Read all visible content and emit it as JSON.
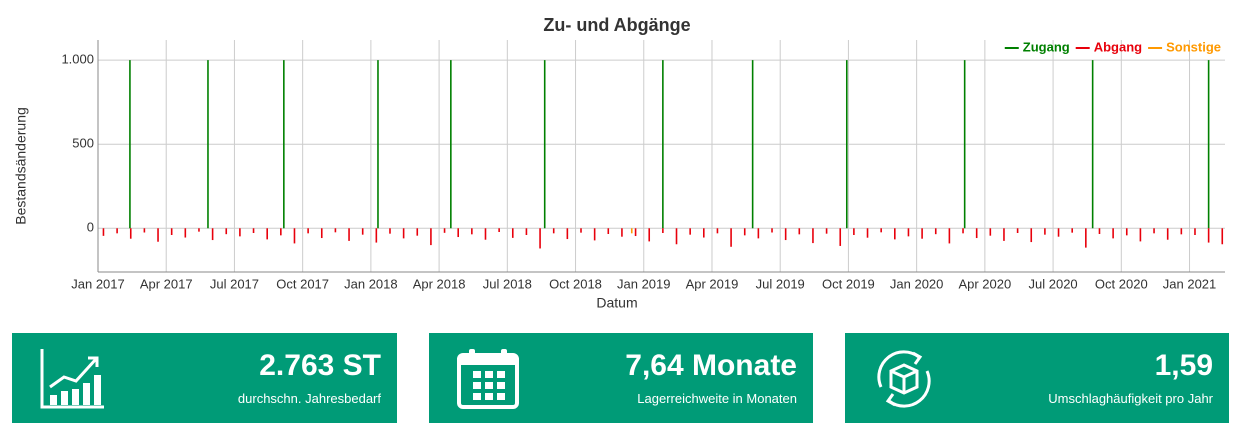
{
  "chart_data": {
    "type": "bar",
    "title": "Zu- und Abgänge",
    "x_label": "Datum",
    "y_label": "Bestandsänderung",
    "xlim": [
      2017.0,
      2021.13
    ],
    "ylim": [
      -260,
      1120
    ],
    "xticks": [
      {
        "value": 2017.0,
        "label": "Jan 2017"
      },
      {
        "value": 2017.25,
        "label": "Apr 2017"
      },
      {
        "value": 2017.5,
        "label": "Jul 2017"
      },
      {
        "value": 2017.75,
        "label": "Oct 2017"
      },
      {
        "value": 2018.0,
        "label": "Jan 2018"
      },
      {
        "value": 2018.25,
        "label": "Apr 2018"
      },
      {
        "value": 2018.5,
        "label": "Jul 2018"
      },
      {
        "value": 2018.75,
        "label": "Oct 2018"
      },
      {
        "value": 2019.0,
        "label": "Jan 2019"
      },
      {
        "value": 2019.25,
        "label": "Apr 2019"
      },
      {
        "value": 2019.5,
        "label": "Jul 2019"
      },
      {
        "value": 2019.75,
        "label": "Oct 2019"
      },
      {
        "value": 2020.0,
        "label": "Jan 2020"
      },
      {
        "value": 2020.25,
        "label": "Apr 2020"
      },
      {
        "value": 2020.5,
        "label": "Jul 2020"
      },
      {
        "value": 2020.75,
        "label": "Oct 2020"
      },
      {
        "value": 2021.0,
        "label": "Jan 2021"
      }
    ],
    "yticks": [
      0,
      500,
      {
        "value": 1000,
        "label": "1.000"
      }
    ],
    "grid": true,
    "legend": "top-right",
    "series": [
      {
        "name": "Zugang",
        "color": "#008000",
        "x": [
          2017.117,
          2017.403,
          2017.681,
          2018.026,
          2018.293,
          2018.637,
          2019.07,
          2019.399,
          2019.744,
          2020.176,
          2020.645,
          2021.07
        ],
        "values": [
          1000,
          1000,
          1000,
          1000,
          1000,
          1000,
          1000,
          1000,
          1000,
          1000,
          1000,
          1000
        ]
      },
      {
        "name": "Abgang",
        "color": "#e8000b",
        "x": [
          2017.02,
          2017.07,
          2017.12,
          2017.17,
          2017.22,
          2017.27,
          2017.32,
          2017.37,
          2017.42,
          2017.47,
          2017.52,
          2017.57,
          2017.62,
          2017.67,
          2017.72,
          2017.77,
          2017.82,
          2017.87,
          2017.92,
          2017.97,
          2018.02,
          2018.07,
          2018.12,
          2018.17,
          2018.22,
          2018.27,
          2018.32,
          2018.37,
          2018.42,
          2018.47,
          2018.52,
          2018.57,
          2018.62,
          2018.67,
          2018.72,
          2018.77,
          2018.82,
          2018.87,
          2018.92,
          2018.97,
          2019.02,
          2019.07,
          2019.12,
          2019.17,
          2019.22,
          2019.27,
          2019.32,
          2019.37,
          2019.42,
          2019.47,
          2019.52,
          2019.57,
          2019.62,
          2019.67,
          2019.72,
          2019.77,
          2019.82,
          2019.87,
          2019.92,
          2019.97,
          2020.02,
          2020.07,
          2020.12,
          2020.17,
          2020.22,
          2020.27,
          2020.32,
          2020.37,
          2020.42,
          2020.47,
          2020.52,
          2020.57,
          2020.62,
          2020.67,
          2020.72,
          2020.77,
          2020.82,
          2020.87,
          2020.92,
          2020.97,
          2021.02,
          2021.07,
          2021.12
        ],
        "values": [
          -45,
          -30,
          -62,
          -25,
          -80,
          -40,
          -55,
          -20,
          -70,
          -35,
          -48,
          -28,
          -66,
          -42,
          -90,
          -30,
          -58,
          -24,
          -75,
          -38,
          -85,
          -32,
          -60,
          -44,
          -100,
          -27,
          -52,
          -36,
          -68,
          -22,
          -57,
          -40,
          -120,
          -30,
          -64,
          -26,
          -72,
          -34,
          -50,
          -46,
          -78,
          -28,
          -95,
          -38,
          -55,
          -30,
          -110,
          -42,
          -60,
          -25,
          -70,
          -36,
          -88,
          -32,
          -105,
          -40,
          -56,
          -24,
          -66,
          -48,
          -62,
          -35,
          -90,
          -30,
          -58,
          -44,
          -75,
          -28,
          -82,
          -38,
          -50,
          -26,
          -115,
          -34,
          -60,
          -42,
          -78,
          -30,
          -68,
          -36,
          -40,
          -85,
          -95
        ]
      },
      {
        "name": "Sonstige",
        "color": "#ff9900",
        "x": [
          2018.956
        ],
        "values": [
          -30
        ]
      }
    ]
  },
  "kpis": [
    {
      "value": "2.763 ST",
      "label": "durchschn. Jahresbedarf"
    },
    {
      "value": "7,64 Monate",
      "label": "Lagerreichweite in Monaten"
    },
    {
      "value": "1,59",
      "label": "Umschlaghäufigkeit pro Jahr"
    }
  ]
}
